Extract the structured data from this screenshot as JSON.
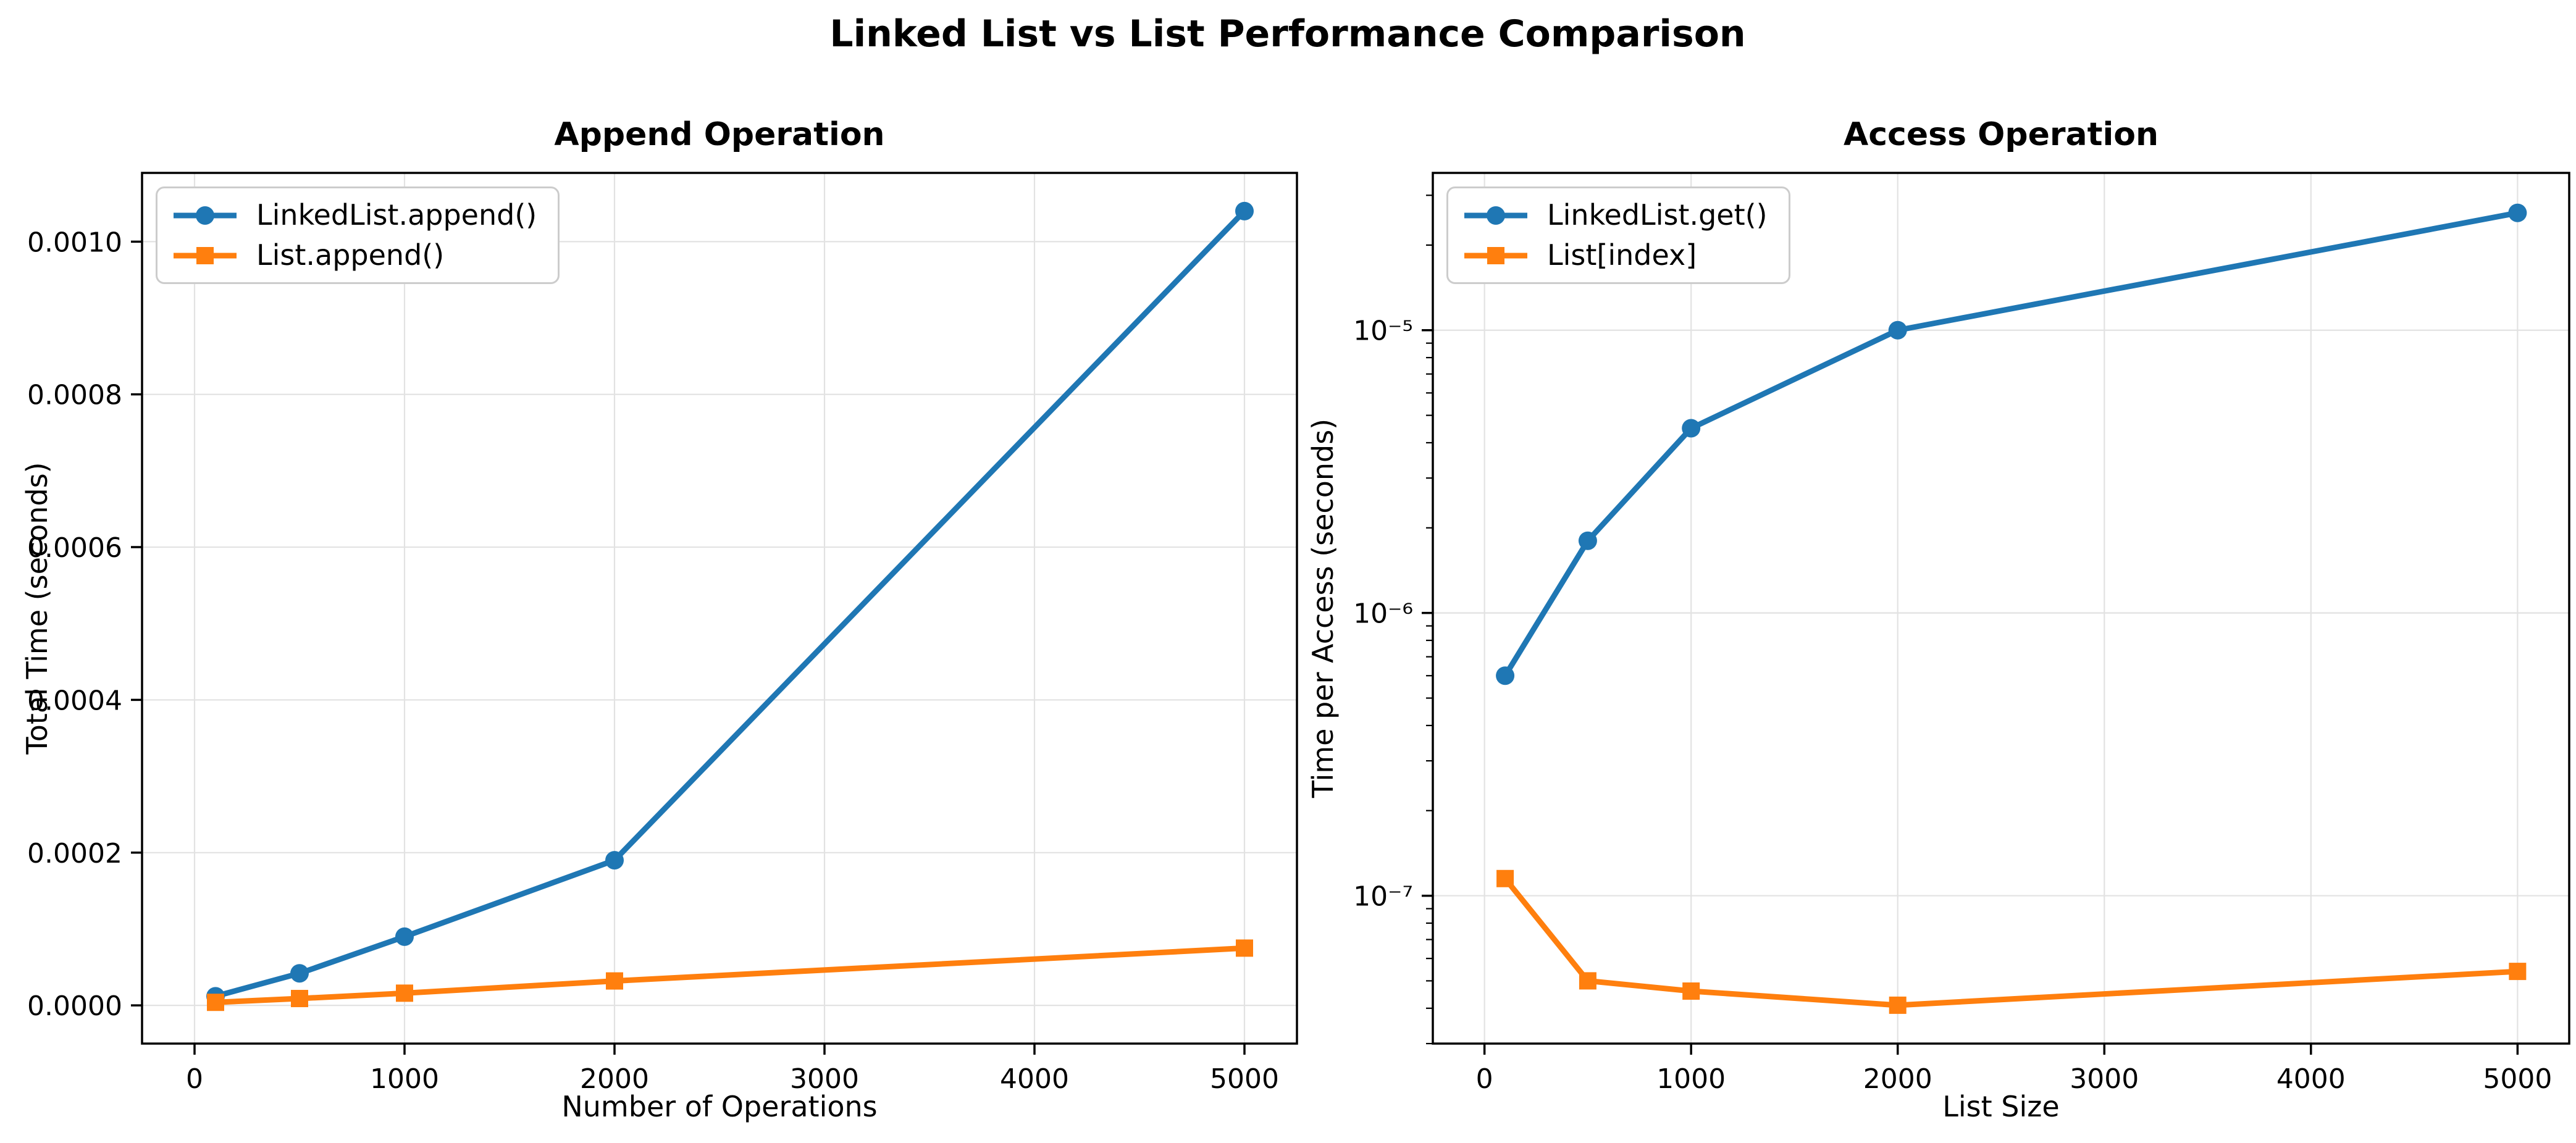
{
  "figure": {
    "suptitle": "Linked List vs List Performance Comparison"
  },
  "style": {
    "background": "#ffffff",
    "grid_color": "#e2e2e2",
    "axis_color": "#000000",
    "text_color": "#000000",
    "legend_border": "#cccccc",
    "blue": "#1f77b4",
    "orange": "#ff7f0e"
  },
  "chart_data": [
    {
      "type": "line",
      "title": "Append Operation",
      "xlabel": "Number of Operations",
      "ylabel": "Total Time (seconds)",
      "yscale": "linear",
      "grid": true,
      "legend_position": "upper-left",
      "x": [
        100,
        500,
        1000,
        2000,
        5000
      ],
      "series": [
        {
          "name": "LinkedList.append()",
          "color": "#1f77b4",
          "marker": "circle",
          "values": [
            1.2e-05,
            4.2e-05,
            9e-05,
            0.00019,
            0.00104
          ]
        },
        {
          "name": "List.append()",
          "color": "#ff7f0e",
          "marker": "square",
          "values": [
            4e-06,
            9e-06,
            1.6e-05,
            3.2e-05,
            7.5e-05
          ]
        }
      ],
      "xlim": [
        -250,
        5250
      ],
      "ylim": [
        -5e-05,
        0.00109
      ],
      "xticks": {
        "values": [
          0,
          1000,
          2000,
          3000,
          4000,
          5000
        ],
        "labels": [
          "0",
          "1000",
          "2000",
          "3000",
          "4000",
          "5000"
        ]
      },
      "yticks": {
        "values": [
          0,
          0.0002,
          0.0004,
          0.0006,
          0.0008,
          0.001
        ],
        "labels": [
          "0.0000",
          "0.0002",
          "0.0004",
          "0.0006",
          "0.0008",
          "0.0010"
        ]
      }
    },
    {
      "type": "line",
      "title": "Access Operation",
      "xlabel": "List Size",
      "ylabel": "Time per Access (seconds)",
      "yscale": "log",
      "grid": true,
      "legend_position": "upper-left",
      "x": [
        100,
        500,
        1000,
        2000,
        5000
      ],
      "series": [
        {
          "name": "LinkedList.get()",
          "color": "#1f77b4",
          "marker": "circle",
          "values": [
            6e-07,
            1.8e-06,
            4.5e-06,
            1e-05,
            2.6e-05
          ]
        },
        {
          "name": "List[index]",
          "color": "#ff7f0e",
          "marker": "square",
          "values": [
            1.15e-07,
            5e-08,
            4.6e-08,
            4.1e-08,
            5.4e-08
          ]
        }
      ],
      "xlim": [
        -250,
        5250
      ],
      "ylim": [
        3e-08,
        3.6e-05
      ],
      "xticks": {
        "values": [
          0,
          1000,
          2000,
          3000,
          4000,
          5000
        ],
        "labels": [
          "0",
          "1000",
          "2000",
          "3000",
          "4000",
          "5000"
        ]
      },
      "yticks": {
        "values": [
          1e-05,
          1e-06,
          1e-07
        ],
        "labels": [
          "10⁻⁵",
          "10⁻⁶",
          "10⁻⁷"
        ]
      }
    }
  ]
}
